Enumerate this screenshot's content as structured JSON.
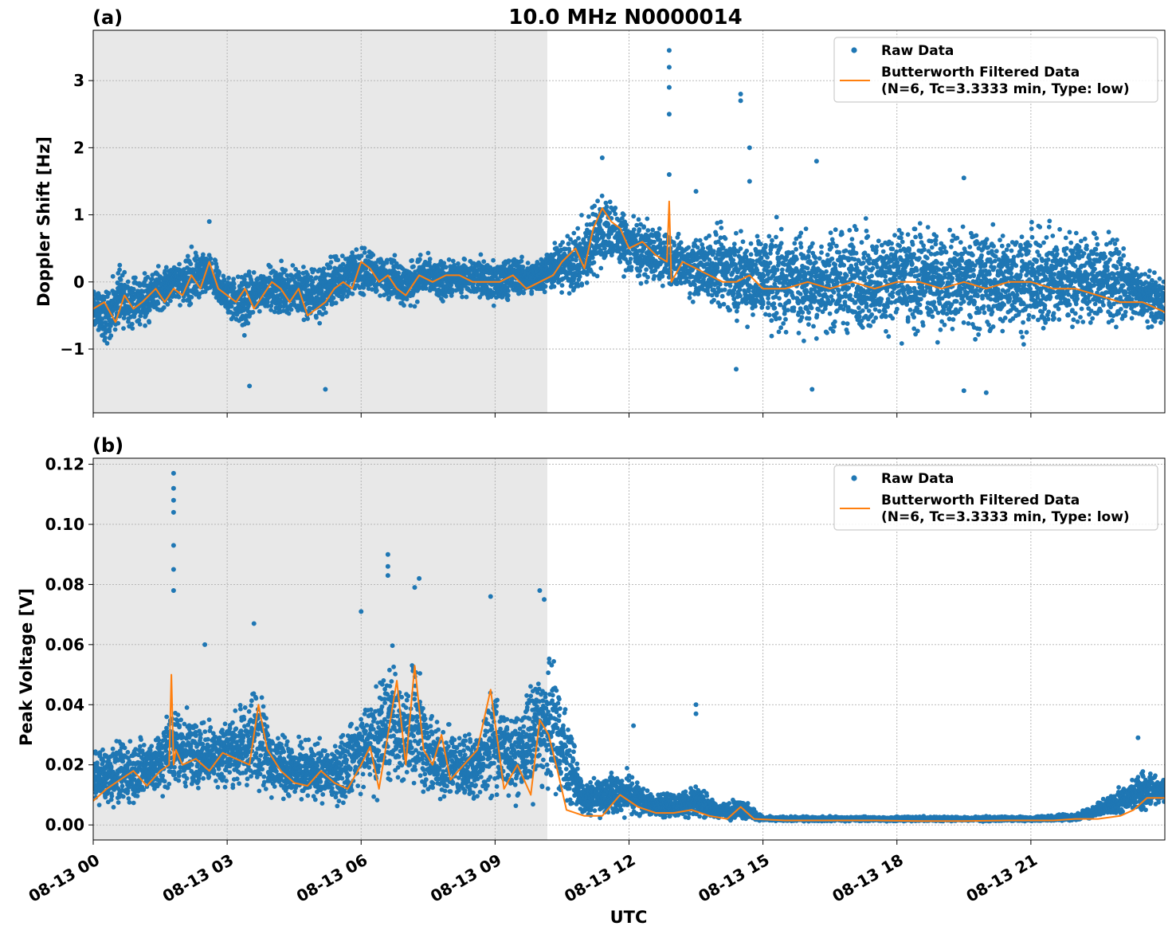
{
  "title": "10.0 MHz N0000014",
  "colors": {
    "raw": "#1f77b4",
    "filtered": "#ff7f0e",
    "night_shade": "#e8e8e8",
    "grid": "#b0b0b0"
  },
  "legend": {
    "raw_label": "Raw Data",
    "filtered_label_line1": "Butterworth Filtered Data",
    "filtered_label_line2": "(N=6, Tc=3.3333 min, Type: low)"
  },
  "x_axis": {
    "label": "UTC",
    "range_hours": [
      0,
      24
    ],
    "ticks": [
      {
        "hour": 0,
        "label": "08-13 00"
      },
      {
        "hour": 3,
        "label": "08-13 03"
      },
      {
        "hour": 6,
        "label": "08-13 06"
      },
      {
        "hour": 9,
        "label": "08-13 09"
      },
      {
        "hour": 12,
        "label": "08-13 12"
      },
      {
        "hour": 15,
        "label": "08-13 15"
      },
      {
        "hour": 18,
        "label": "08-13 18"
      },
      {
        "hour": 21,
        "label": "08-13 21"
      }
    ]
  },
  "chart_data": [
    {
      "type": "scatter",
      "panel_label": "(a)",
      "ylabel": "Doppler Shift [Hz]",
      "ylim": [
        -1.95,
        3.75
      ],
      "yticks": [
        {
          "value": -1,
          "label": "−1"
        },
        {
          "value": 0,
          "label": "0"
        },
        {
          "value": 1,
          "label": "1"
        },
        {
          "value": 2,
          "label": "2"
        },
        {
          "value": 3,
          "label": "3"
        }
      ],
      "shaded_x_range_hours": [
        0,
        10.17
      ],
      "grid": true,
      "legend_placement": "top-right",
      "series": [
        {
          "name": "Raw Data",
          "kind": "scatter-band",
          "x": [
            0,
            0.3,
            0.6,
            1,
            1.4,
            1.8,
            2.2,
            2.6,
            3,
            3.4,
            3.8,
            4.2,
            4.6,
            5,
            5.4,
            5.8,
            6.2,
            6.6,
            7,
            7.4,
            7.8,
            8.2,
            8.6,
            9,
            9.4,
            9.8,
            10.2,
            10.6,
            11,
            11.3,
            11.6,
            12,
            12.4,
            12.8,
            13.2,
            13.6,
            14,
            14.4,
            14.8,
            15.2,
            16,
            17,
            18,
            19,
            20,
            21,
            22,
            22.5,
            23,
            23.5,
            24
          ],
          "low": [
            -0.9,
            -1.1,
            -0.8,
            -0.8,
            -0.6,
            -0.4,
            -0.5,
            -0.3,
            -0.6,
            -0.9,
            -0.5,
            -0.6,
            -0.7,
            -0.8,
            -0.5,
            -0.3,
            -0.3,
            -0.3,
            -0.5,
            -0.3,
            -0.4,
            -0.3,
            -0.3,
            -0.5,
            -0.3,
            -0.3,
            -0.2,
            -0.3,
            -0.4,
            0.0,
            0.1,
            -0.1,
            -0.1,
            -0.2,
            -0.3,
            -0.4,
            -0.6,
            -0.7,
            -0.9,
            -0.9,
            -1.0,
            -1.0,
            -1.0,
            -1.0,
            -1.0,
            -1.0,
            -0.9,
            -0.8,
            -0.8,
            -0.7,
            -0.7
          ],
          "high": [
            0.1,
            0.0,
            0.3,
            0.2,
            0.3,
            0.4,
            0.6,
            0.5,
            0.2,
            0.3,
            0.3,
            0.4,
            0.4,
            0.4,
            0.5,
            0.6,
            0.6,
            0.5,
            0.4,
            0.5,
            0.4,
            0.4,
            0.5,
            0.4,
            0.5,
            0.4,
            0.6,
            0.8,
            1.1,
            1.5,
            1.4,
            1.2,
            1.0,
            0.9,
            0.8,
            0.8,
            1.0,
            1.0,
            1.0,
            1.0,
            1.0,
            1.05,
            1.05,
            1.05,
            1.05,
            1.05,
            1.0,
            0.9,
            0.8,
            0.3,
            0.1
          ],
          "outliers": [
            {
              "x": 12.9,
              "y": 3.45
            },
            {
              "x": 12.9,
              "y": 3.2
            },
            {
              "x": 12.9,
              "y": 2.9
            },
            {
              "x": 12.9,
              "y": 2.5
            },
            {
              "x": 12.9,
              "y": 1.6
            },
            {
              "x": 14.5,
              "y": 2.8
            },
            {
              "x": 14.5,
              "y": 2.7
            },
            {
              "x": 14.7,
              "y": 2.0
            },
            {
              "x": 14.7,
              "y": 1.5
            },
            {
              "x": 16.2,
              "y": 1.8
            },
            {
              "x": 13.5,
              "y": 1.35
            },
            {
              "x": 19.5,
              "y": 1.55
            },
            {
              "x": 3.5,
              "y": -1.55
            },
            {
              "x": 5.2,
              "y": -1.6
            },
            {
              "x": 16.1,
              "y": -1.6
            },
            {
              "x": 20.0,
              "y": -1.65
            },
            {
              "x": 19.5,
              "y": -1.62
            },
            {
              "x": 2.6,
              "y": 0.9
            },
            {
              "x": 11.4,
              "y": 1.85
            },
            {
              "x": 14.4,
              "y": -1.3
            }
          ]
        },
        {
          "name": "Butterworth Filtered Data\n(N=6, Tc=3.3333 min, Type: low)",
          "kind": "line",
          "x": [
            0,
            0.25,
            0.5,
            0.7,
            0.9,
            1.1,
            1.4,
            1.6,
            1.8,
            2.0,
            2.2,
            2.4,
            2.6,
            2.8,
            3.0,
            3.2,
            3.4,
            3.6,
            3.8,
            4.0,
            4.2,
            4.4,
            4.6,
            4.8,
            5.0,
            5.2,
            5.4,
            5.6,
            5.8,
            6.0,
            6.2,
            6.4,
            6.6,
            6.8,
            7.0,
            7.3,
            7.6,
            7.9,
            8.2,
            8.5,
            8.8,
            9.1,
            9.4,
            9.7,
            10.0,
            10.3,
            10.5,
            10.8,
            11.0,
            11.2,
            11.4,
            11.6,
            11.8,
            12.0,
            12.3,
            12.6,
            12.85,
            12.9,
            12.95,
            13.2,
            13.5,
            13.8,
            14.1,
            14.4,
            14.7,
            15.0,
            15.5,
            16.0,
            16.5,
            17.0,
            17.5,
            18.0,
            18.5,
            19.0,
            19.5,
            20.0,
            20.5,
            21.0,
            21.5,
            22.0,
            22.5,
            23.0,
            23.5,
            24.0
          ],
          "y": [
            -0.4,
            -0.3,
            -0.6,
            -0.2,
            -0.4,
            -0.3,
            -0.1,
            -0.3,
            -0.1,
            -0.2,
            0.1,
            -0.1,
            0.3,
            -0.1,
            -0.2,
            -0.3,
            -0.1,
            -0.4,
            -0.2,
            0.0,
            -0.1,
            -0.3,
            -0.1,
            -0.5,
            -0.4,
            -0.3,
            -0.1,
            0.0,
            -0.1,
            0.3,
            0.2,
            0.0,
            0.1,
            -0.1,
            -0.2,
            0.1,
            0.0,
            0.1,
            0.1,
            0.0,
            0.0,
            0.0,
            0.1,
            -0.1,
            0.0,
            0.1,
            0.3,
            0.5,
            0.2,
            0.8,
            1.1,
            0.9,
            0.8,
            0.5,
            0.6,
            0.4,
            0.3,
            1.2,
            0.0,
            0.3,
            0.2,
            0.1,
            0.0,
            0.0,
            0.1,
            -0.1,
            -0.1,
            0.0,
            -0.1,
            0.0,
            -0.1,
            0.0,
            0.0,
            -0.1,
            0.0,
            -0.1,
            0.0,
            0.0,
            -0.1,
            -0.1,
            -0.2,
            -0.3,
            -0.3,
            -0.45
          ]
        }
      ]
    },
    {
      "type": "scatter",
      "panel_label": "(b)",
      "ylabel": "Peak Voltage [V]",
      "ylim": [
        -0.005,
        0.122
      ],
      "yticks": [
        {
          "value": 0.0,
          "label": "0.00"
        },
        {
          "value": 0.02,
          "label": "0.02"
        },
        {
          "value": 0.04,
          "label": "0.04"
        },
        {
          "value": 0.06,
          "label": "0.06"
        },
        {
          "value": 0.08,
          "label": "0.08"
        },
        {
          "value": 0.1,
          "label": "0.10"
        },
        {
          "value": 0.12,
          "label": "0.12"
        }
      ],
      "shaded_x_range_hours": [
        0,
        10.17
      ],
      "grid": true,
      "legend_placement": "top-right",
      "series": [
        {
          "name": "Raw Data",
          "kind": "scatter-band",
          "x": [
            0,
            0.5,
            1,
            1.5,
            1.8,
            2,
            2.5,
            3,
            3.5,
            3.7,
            4,
            4.5,
            5,
            5.5,
            6,
            6.5,
            6.7,
            7,
            7.2,
            7.5,
            8,
            8.5,
            9,
            9.5,
            10,
            10.3,
            10.5,
            11,
            11.5,
            12,
            12.5,
            13,
            13.5,
            14,
            14.5,
            15,
            16,
            17,
            18,
            19,
            20,
            21,
            22,
            22.5,
            23,
            23.5,
            24
          ],
          "low": [
            0.004,
            0.004,
            0.005,
            0.006,
            0.007,
            0.008,
            0.008,
            0.009,
            0.008,
            0.008,
            0.006,
            0.005,
            0.005,
            0.005,
            0.005,
            0.005,
            0.006,
            0.005,
            0.006,
            0.005,
            0.005,
            0.004,
            0.005,
            0.004,
            0.006,
            0.004,
            0.002,
            0.001,
            0.001,
            0.001,
            0.001,
            0.001,
            0.001,
            0.001,
            0.001,
            0.001,
            0.001,
            0.001,
            0.001,
            0.001,
            0.001,
            0.001,
            0.001,
            0.002,
            0.003,
            0.004,
            0.005
          ],
          "high": [
            0.028,
            0.03,
            0.032,
            0.035,
            0.05,
            0.04,
            0.038,
            0.04,
            0.045,
            0.055,
            0.036,
            0.03,
            0.03,
            0.03,
            0.045,
            0.055,
            0.065,
            0.05,
            0.07,
            0.04,
            0.035,
            0.035,
            0.05,
            0.04,
            0.06,
            0.06,
            0.05,
            0.015,
            0.02,
            0.02,
            0.012,
            0.012,
            0.015,
            0.008,
            0.01,
            0.003,
            0.003,
            0.003,
            0.003,
            0.003,
            0.003,
            0.003,
            0.004,
            0.008,
            0.013,
            0.02,
            0.018
          ],
          "outliers": [
            {
              "x": 1.8,
              "y": 0.117
            },
            {
              "x": 1.8,
              "y": 0.112
            },
            {
              "x": 1.8,
              "y": 0.108
            },
            {
              "x": 1.8,
              "y": 0.104
            },
            {
              "x": 1.8,
              "y": 0.093
            },
            {
              "x": 1.8,
              "y": 0.085
            },
            {
              "x": 1.8,
              "y": 0.078
            },
            {
              "x": 2.5,
              "y": 0.06
            },
            {
              "x": 3.6,
              "y": 0.067
            },
            {
              "x": 6.0,
              "y": 0.071
            },
            {
              "x": 6.6,
              "y": 0.09
            },
            {
              "x": 6.6,
              "y": 0.086
            },
            {
              "x": 6.6,
              "y": 0.083
            },
            {
              "x": 7.3,
              "y": 0.082
            },
            {
              "x": 7.2,
              "y": 0.079
            },
            {
              "x": 8.9,
              "y": 0.076
            },
            {
              "x": 10.0,
              "y": 0.078
            },
            {
              "x": 10.1,
              "y": 0.075
            },
            {
              "x": 13.5,
              "y": 0.04
            },
            {
              "x": 13.5,
              "y": 0.037
            },
            {
              "x": 12.1,
              "y": 0.033
            },
            {
              "x": 23.4,
              "y": 0.029
            }
          ]
        },
        {
          "name": "Butterworth Filtered Data\n(N=6, Tc=3.3333 min, Type: low)",
          "kind": "line",
          "x": [
            0,
            0.3,
            0.6,
            0.9,
            1.2,
            1.5,
            1.7,
            1.75,
            1.8,
            1.85,
            2.0,
            2.3,
            2.6,
            2.9,
            3.2,
            3.5,
            3.7,
            3.9,
            4.2,
            4.5,
            4.8,
            5.1,
            5.4,
            5.7,
            6.0,
            6.2,
            6.4,
            6.6,
            6.8,
            7.0,
            7.2,
            7.4,
            7.6,
            7.8,
            8.0,
            8.3,
            8.6,
            8.9,
            9.2,
            9.5,
            9.8,
            10.0,
            10.2,
            10.4,
            10.6,
            11.0,
            11.4,
            11.8,
            12.2,
            12.6,
            13.0,
            13.4,
            13.8,
            14.2,
            14.5,
            14.8,
            15.5,
            16.5,
            17.5,
            18.5,
            19.5,
            20.5,
            21.5,
            22.0,
            22.5,
            23.0,
            23.3,
            23.6,
            24.0
          ],
          "y": [
            0.008,
            0.012,
            0.015,
            0.018,
            0.013,
            0.018,
            0.02,
            0.05,
            0.02,
            0.025,
            0.02,
            0.022,
            0.018,
            0.024,
            0.022,
            0.02,
            0.04,
            0.025,
            0.018,
            0.014,
            0.013,
            0.018,
            0.014,
            0.012,
            0.02,
            0.026,
            0.012,
            0.03,
            0.048,
            0.02,
            0.053,
            0.025,
            0.02,
            0.03,
            0.015,
            0.02,
            0.025,
            0.045,
            0.012,
            0.02,
            0.01,
            0.035,
            0.03,
            0.018,
            0.005,
            0.003,
            0.003,
            0.01,
            0.006,
            0.004,
            0.004,
            0.005,
            0.003,
            0.002,
            0.006,
            0.002,
            0.0015,
            0.0015,
            0.0015,
            0.0013,
            0.0013,
            0.0015,
            0.0015,
            0.002,
            0.002,
            0.003,
            0.005,
            0.009,
            0.009
          ]
        }
      ]
    }
  ]
}
